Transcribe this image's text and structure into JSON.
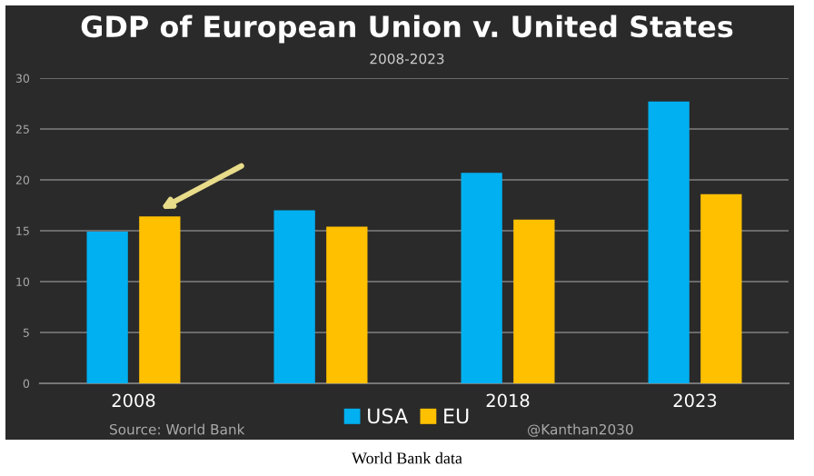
{
  "chart_data": {
    "type": "bar",
    "title": "GDP of European Union v. United States",
    "subtitle": "2008-2023",
    "categories": [
      "2008",
      null,
      "2018",
      "2023"
    ],
    "series": [
      {
        "name": "USA",
        "color": "#00b0f0",
        "values": [
          14.9,
          17.0,
          20.7,
          27.7
        ]
      },
      {
        "name": "EU",
        "color": "#ffc000",
        "values": [
          16.4,
          15.4,
          16.1,
          18.6
        ]
      }
    ],
    "ylim": [
      0,
      30
    ],
    "yticks": [
      0,
      5,
      10,
      15,
      20,
      25,
      30
    ],
    "grid": "y",
    "legend": "bottom",
    "annotations": [
      "Source: World Bank",
      "@Kanthan2030",
      "World Bank data"
    ]
  }
}
